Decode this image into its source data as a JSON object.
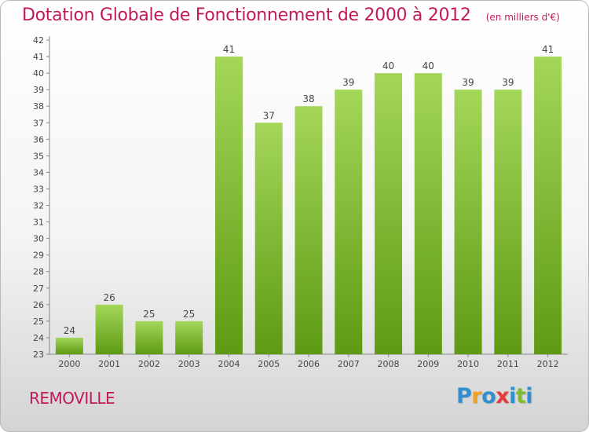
{
  "title": "Dotation Globale de Fonctionnement de 2000 à 2012",
  "unit": "(en milliers d'€)",
  "commune": "REMOVILLE",
  "logo": {
    "letters": [
      "P",
      "r",
      "o",
      "x",
      "i",
      "t",
      "i"
    ],
    "colors": [
      "#2f8fd1",
      "#f0a020",
      "#2f8fd1",
      "#e8393b",
      "#2f8fd1",
      "#7cbc2f",
      "#2f8fd1"
    ]
  },
  "colors": {
    "bar_light": "#a4d65a",
    "bar_dark": "#5e9a14",
    "title": "#c2185b"
  },
  "chart_data": {
    "type": "bar",
    "categories": [
      "2000",
      "2001",
      "2002",
      "2003",
      "2004",
      "2005",
      "2006",
      "2007",
      "2008",
      "2009",
      "2010",
      "2011",
      "2012"
    ],
    "values": [
      24,
      26,
      25,
      25,
      41,
      37,
      38,
      39,
      40,
      40,
      39,
      39,
      41
    ],
    "ylim": [
      23,
      42
    ],
    "yticks": [
      "23",
      "24",
      "25",
      "26",
      "27",
      "28",
      "29",
      "30",
      "31",
      "32",
      "33",
      "34",
      "35",
      "36",
      "37",
      "38",
      "39",
      "40",
      "41",
      "42"
    ],
    "grid": false,
    "legend": "none"
  }
}
